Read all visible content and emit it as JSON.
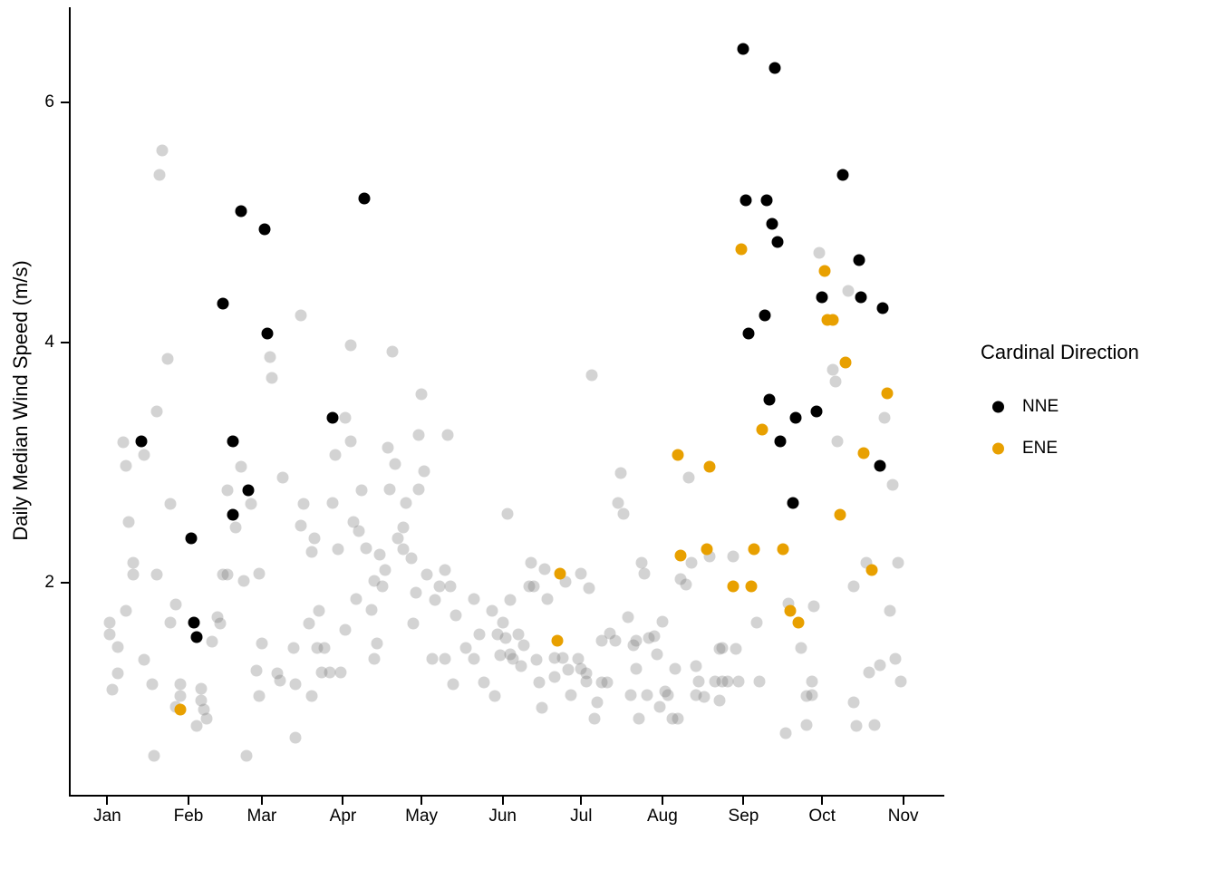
{
  "chart_data": {
    "type": "scatter",
    "title": "",
    "xlabel": "",
    "ylabel": "Daily Median Wind Speed (m/s)",
    "grid": false,
    "x_unit": "day-of-year",
    "x_domain": [
      -13,
      320
    ],
    "y_domain": [
      0.23,
      6.78
    ],
    "x_ticks": [
      {
        "label": "Jan",
        "day": 1
      },
      {
        "label": "Feb",
        "day": 32
      },
      {
        "label": "Mar",
        "day": 60
      },
      {
        "label": "Apr",
        "day": 91
      },
      {
        "label": "May",
        "day": 121
      },
      {
        "label": "Jun",
        "day": 152
      },
      {
        "label": "Jul",
        "day": 182
      },
      {
        "label": "Aug",
        "day": 213
      },
      {
        "label": "Sep",
        "day": 244
      },
      {
        "label": "Oct",
        "day": 274
      },
      {
        "label": "Nov",
        "day": 305
      }
    ],
    "y_ticks": [
      {
        "label": "2",
        "value": 2
      },
      {
        "label": "4",
        "value": 4
      },
      {
        "label": "6",
        "value": 6
      }
    ],
    "legend": {
      "title": "Cardinal Direction",
      "position": "right",
      "items": [
        {
          "label": "NNE",
          "color": "#000000"
        },
        {
          "label": "ENE",
          "color": "#E8A000"
        }
      ]
    },
    "series": [
      {
        "name": "NNE",
        "color": "#000000",
        "z": 1,
        "in_legend": true,
        "points": [
          [
            52,
            5.1
          ],
          [
            61,
            4.95
          ],
          [
            99,
            5.2
          ],
          [
            244,
            6.45
          ],
          [
            256,
            6.29
          ],
          [
            282,
            5.4
          ],
          [
            245,
            5.19
          ],
          [
            253,
            5.19
          ],
          [
            255,
            4.99
          ],
          [
            257,
            4.84
          ],
          [
            288,
            4.69
          ],
          [
            45,
            4.33
          ],
          [
            62,
            4.08
          ],
          [
            14,
            3.18
          ],
          [
            49,
            3.18
          ],
          [
            55,
            2.77
          ],
          [
            49,
            2.57
          ],
          [
            87,
            3.38
          ],
          [
            274,
            4.38
          ],
          [
            289,
            4.38
          ],
          [
            297,
            4.29
          ],
          [
            252,
            4.23
          ],
          [
            246,
            4.08
          ],
          [
            254,
            3.53
          ],
          [
            264,
            3.38
          ],
          [
            272,
            3.43
          ],
          [
            258,
            3.18
          ],
          [
            296,
            2.98
          ],
          [
            263,
            2.67
          ],
          [
            33,
            2.37
          ],
          [
            34,
            1.67
          ],
          [
            35,
            1.55
          ]
        ]
      },
      {
        "name": "ENE",
        "color": "#E8A000",
        "z": 2,
        "in_legend": true,
        "points": [
          [
            243,
            4.78
          ],
          [
            275,
            4.6
          ],
          [
            276,
            4.19
          ],
          [
            278,
            4.19
          ],
          [
            283,
            3.84
          ],
          [
            299,
            3.58
          ],
          [
            251,
            3.28
          ],
          [
            290,
            3.08
          ],
          [
            281,
            2.57
          ],
          [
            219,
            3.07
          ],
          [
            231,
            2.97
          ],
          [
            174,
            2.08
          ],
          [
            220,
            2.23
          ],
          [
            230,
            2.28
          ],
          [
            173,
            1.52
          ],
          [
            248,
            2.28
          ],
          [
            259,
            2.28
          ],
          [
            240,
            1.97
          ],
          [
            247,
            1.97
          ],
          [
            262,
            1.77
          ],
          [
            265,
            1.67
          ],
          [
            293,
            2.11
          ],
          [
            29,
            0.95
          ]
        ]
      },
      {
        "name": "Other",
        "color": "rgba(120,120,120,0.33)",
        "z": 0,
        "in_legend": false,
        "points": [
          [
            22,
            5.6
          ],
          [
            21,
            5.4
          ],
          [
            24,
            3.87
          ],
          [
            63,
            3.88
          ],
          [
            64,
            3.71
          ],
          [
            20,
            3.43
          ],
          [
            7,
            3.17
          ],
          [
            15,
            3.07
          ],
          [
            8,
            2.98
          ],
          [
            52,
            2.97
          ],
          [
            68,
            2.88
          ],
          [
            47,
            2.77
          ],
          [
            56,
            2.66
          ],
          [
            25,
            2.66
          ],
          [
            50,
            2.46
          ],
          [
            9,
            2.51
          ],
          [
            75,
            4.23
          ],
          [
            94,
            3.98
          ],
          [
            110,
            3.93
          ],
          [
            121,
            3.57
          ],
          [
            92,
            3.38
          ],
          [
            94,
            3.18
          ],
          [
            88,
            3.07
          ],
          [
            120,
            3.23
          ],
          [
            131,
            3.23
          ],
          [
            108,
            3.13
          ],
          [
            111,
            2.99
          ],
          [
            122,
            2.93
          ],
          [
            98,
            2.77
          ],
          [
            109,
            2.78
          ],
          [
            120,
            2.78
          ],
          [
            76,
            2.66
          ],
          [
            87,
            2.67
          ],
          [
            115,
            2.67
          ],
          [
            95,
            2.51
          ],
          [
            75,
            2.48
          ],
          [
            114,
            2.46
          ],
          [
            97,
            2.43
          ],
          [
            186,
            3.73
          ],
          [
            197,
            2.92
          ],
          [
            223,
            2.88
          ],
          [
            196,
            2.67
          ],
          [
            198,
            2.58
          ],
          [
            154,
            2.58
          ],
          [
            273,
            4.75
          ],
          [
            284,
            4.43
          ],
          [
            278,
            3.78
          ],
          [
            279,
            3.68
          ],
          [
            298,
            3.38
          ],
          [
            280,
            3.18
          ],
          [
            301,
            2.82
          ],
          [
            11,
            2.17
          ],
          [
            11,
            2.07
          ],
          [
            20,
            2.07
          ],
          [
            45,
            2.07
          ],
          [
            47,
            2.07
          ],
          [
            53,
            2.02
          ],
          [
            59,
            2.08
          ],
          [
            27,
            1.82
          ],
          [
            8,
            1.77
          ],
          [
            2,
            1.67
          ],
          [
            25,
            1.67
          ],
          [
            43,
            1.72
          ],
          [
            44,
            1.66
          ],
          [
            2,
            1.57
          ],
          [
            5,
            1.47
          ],
          [
            41,
            1.51
          ],
          [
            60,
            1.5
          ],
          [
            15,
            1.36
          ],
          [
            5,
            1.25
          ],
          [
            18,
            1.16
          ],
          [
            3,
            1.11
          ],
          [
            29,
            1.16
          ],
          [
            29,
            1.06
          ],
          [
            27,
            0.97
          ],
          [
            37,
            1.12
          ],
          [
            37,
            1.02
          ],
          [
            38,
            0.95
          ],
          [
            39,
            0.87
          ],
          [
            35,
            0.81
          ],
          [
            58,
            1.27
          ],
          [
            66,
            1.25
          ],
          [
            67,
            1.19
          ],
          [
            59,
            1.06
          ],
          [
            19,
            0.56
          ],
          [
            54,
            0.56
          ],
          [
            80,
            2.37
          ],
          [
            112,
            2.37
          ],
          [
            79,
            2.26
          ],
          [
            89,
            2.28
          ],
          [
            100,
            2.29
          ],
          [
            105,
            2.24
          ],
          [
            114,
            2.28
          ],
          [
            117,
            2.21
          ],
          [
            107,
            2.11
          ],
          [
            103,
            2.02
          ],
          [
            106,
            1.97
          ],
          [
            123,
            2.07
          ],
          [
            130,
            2.11
          ],
          [
            128,
            1.97
          ],
          [
            132,
            1.97
          ],
          [
            119,
            1.92
          ],
          [
            126,
            1.86
          ],
          [
            141,
            1.87
          ],
          [
            96,
            1.87
          ],
          [
            102,
            1.78
          ],
          [
            82,
            1.77
          ],
          [
            78,
            1.66
          ],
          [
            92,
            1.61
          ],
          [
            118,
            1.66
          ],
          [
            134,
            1.73
          ],
          [
            148,
            1.77
          ],
          [
            152,
            1.67
          ],
          [
            72,
            1.46
          ],
          [
            81,
            1.46
          ],
          [
            84,
            1.46
          ],
          [
            104,
            1.5
          ],
          [
            103,
            1.37
          ],
          [
            138,
            1.46
          ],
          [
            141,
            1.37
          ],
          [
            125,
            1.37
          ],
          [
            130,
            1.37
          ],
          [
            83,
            1.26
          ],
          [
            86,
            1.26
          ],
          [
            90,
            1.26
          ],
          [
            73,
            1.16
          ],
          [
            79,
            1.06
          ],
          [
            133,
            1.16
          ],
          [
            145,
            1.17
          ],
          [
            149,
            1.06
          ],
          [
            73,
            0.71
          ],
          [
            143,
            1.57
          ],
          [
            150,
            1.57
          ],
          [
            153,
            1.54
          ],
          [
            151,
            1.4
          ],
          [
            163,
            2.17
          ],
          [
            168,
            2.12
          ],
          [
            176,
            2.01
          ],
          [
            182,
            2.08
          ],
          [
            162,
            1.97
          ],
          [
            164,
            1.97
          ],
          [
            185,
            1.96
          ],
          [
            169,
            1.87
          ],
          [
            155,
            1.86
          ],
          [
            205,
            2.17
          ],
          [
            206,
            2.08
          ],
          [
            224,
            2.17
          ],
          [
            231,
            2.22
          ],
          [
            220,
            2.03
          ],
          [
            222,
            1.99
          ],
          [
            200,
            1.72
          ],
          [
            213,
            1.68
          ],
          [
            158,
            1.57
          ],
          [
            160,
            1.48
          ],
          [
            190,
            1.52
          ],
          [
            193,
            1.58
          ],
          [
            195,
            1.52
          ],
          [
            202,
            1.48
          ],
          [
            203,
            1.52
          ],
          [
            210,
            1.56
          ],
          [
            208,
            1.54
          ],
          [
            211,
            1.41
          ],
          [
            155,
            1.41
          ],
          [
            156,
            1.37
          ],
          [
            159,
            1.31
          ],
          [
            165,
            1.36
          ],
          [
            172,
            1.38
          ],
          [
            175,
            1.38
          ],
          [
            181,
            1.37
          ],
          [
            177,
            1.28
          ],
          [
            182,
            1.29
          ],
          [
            166,
            1.17
          ],
          [
            172,
            1.22
          ],
          [
            184,
            1.25
          ],
          [
            184,
            1.18
          ],
          [
            190,
            1.17
          ],
          [
            192,
            1.17
          ],
          [
            203,
            1.29
          ],
          [
            201,
            1.07
          ],
          [
            207,
            1.07
          ],
          [
            178,
            1.07
          ],
          [
            167,
            0.96
          ],
          [
            188,
            1.01
          ],
          [
            187,
            0.87
          ],
          [
            204,
            0.87
          ],
          [
            212,
            0.97
          ],
          [
            214,
            1.1
          ],
          [
            215,
            1.07
          ],
          [
            217,
            0.87
          ],
          [
            219,
            0.87
          ],
          [
            218,
            1.29
          ],
          [
            226,
            1.31
          ],
          [
            227,
            1.18
          ],
          [
            226,
            1.07
          ],
          [
            229,
            1.05
          ],
          [
            233,
            1.18
          ],
          [
            235,
            1.02
          ],
          [
            235,
            1.45
          ],
          [
            240,
            2.22
          ],
          [
            261,
            1.83
          ],
          [
            271,
            1.81
          ],
          [
            249,
            1.67
          ],
          [
            266,
            1.46
          ],
          [
            236,
            1.46
          ],
          [
            241,
            1.45
          ],
          [
            236,
            1.18
          ],
          [
            238,
            1.18
          ],
          [
            242,
            1.18
          ],
          [
            250,
            1.18
          ],
          [
            270,
            1.18
          ],
          [
            268,
            1.06
          ],
          [
            270,
            1.07
          ],
          [
            286,
            1.97
          ],
          [
            291,
            2.17
          ],
          [
            303,
            2.17
          ],
          [
            300,
            1.77
          ],
          [
            302,
            1.37
          ],
          [
            296,
            1.32
          ],
          [
            292,
            1.26
          ],
          [
            286,
            1.01
          ],
          [
            304,
            1.18
          ],
          [
            287,
            0.81
          ],
          [
            294,
            0.82
          ],
          [
            260,
            0.75
          ],
          [
            268,
            0.82
          ]
        ]
      }
    ]
  }
}
